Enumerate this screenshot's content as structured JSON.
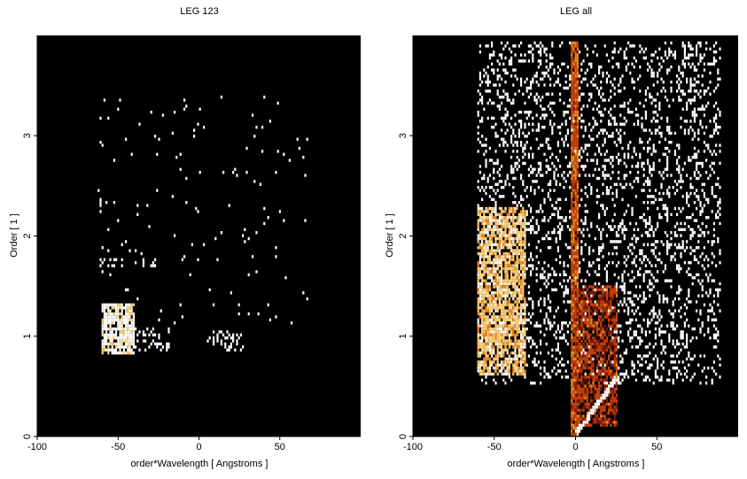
{
  "chart_data": [
    {
      "type": "heatmap",
      "title": "LEG 123",
      "xlabel": "order*Wavelength [ Angstroms ]",
      "ylabel": "Order [ 1 ]",
      "xlim": [
        -100,
        100
      ],
      "ylim": [
        0,
        4
      ],
      "xticks": [
        -100,
        -50,
        0,
        50
      ],
      "yticks": [
        0,
        1,
        2,
        3
      ],
      "background": "#000000",
      "colormap": [
        "#7a1a05",
        "#c8400c",
        "#f08a1e",
        "#ffd27a",
        "#ffffff"
      ],
      "regions": [
        {
          "xmin": -60,
          "xmax": -40,
          "ymin": 0.82,
          "ymax": 1.32,
          "density": 0.85,
          "level": 0.9
        },
        {
          "xmin": -42,
          "xmax": -18,
          "ymin": 0.85,
          "ymax": 1.08,
          "density": 0.22,
          "level": 0.95
        },
        {
          "xmin": 5,
          "xmax": 28,
          "ymin": 0.85,
          "ymax": 1.05,
          "density": 0.3,
          "level": 0.95
        },
        {
          "xmin": -62,
          "xmax": 70,
          "ymin": 1.1,
          "ymax": 3.4,
          "density": 0.015,
          "level": 1.0
        },
        {
          "xmin": -62,
          "xmax": -25,
          "ymin": 1.68,
          "ymax": 1.78,
          "density": 0.3,
          "level": 1.0
        }
      ]
    },
    {
      "type": "heatmap",
      "title": "LEG all",
      "xlabel": "order*Wavelength [ Angstroms ]",
      "ylabel": "Order [ 1 ]",
      "xlim": [
        -100,
        100
      ],
      "ylim": [
        0,
        4
      ],
      "xticks": [
        -100,
        -50,
        0,
        50
      ],
      "yticks": [
        0,
        1,
        2,
        3
      ],
      "background": "#000000",
      "colormap": [
        "#7a1a05",
        "#c8400c",
        "#f08a1e",
        "#ffd27a",
        "#ffffff"
      ],
      "regions": [
        {
          "xmin": -60,
          "xmax": 90,
          "ymin": 0.5,
          "ymax": 3.95,
          "density": 0.2,
          "level": 1.0
        },
        {
          "xmin": -60,
          "xmax": -30,
          "ymin": 0.6,
          "ymax": 2.3,
          "density": 0.75,
          "level": 0.7
        },
        {
          "xmin": -3,
          "xmax": 3,
          "ymin": 0,
          "ymax": 3.95,
          "density": 0.95,
          "level": 0.35
        },
        {
          "xmin": 0,
          "xmax": 27,
          "ymin": 0.1,
          "ymax": 1.5,
          "density": 0.7,
          "level": 0.25
        }
      ],
      "streaks": [
        {
          "x0": 0,
          "y0": 0,
          "x1": 27,
          "y1": 0.6,
          "level": 0.97
        }
      ]
    }
  ]
}
